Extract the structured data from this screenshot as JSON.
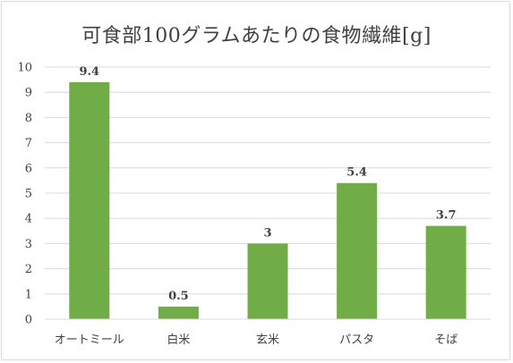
{
  "chart_data": {
    "type": "bar",
    "title": "可食部100グラムあたりの食物繊維[g]",
    "xlabel": "",
    "ylabel": "",
    "categories": [
      "オートミール",
      "白米",
      "玄米",
      "パスタ",
      "そば"
    ],
    "values": [
      9.4,
      0.5,
      3,
      5.4,
      3.7
    ],
    "data_labels": [
      "9.4",
      "0.5",
      "3",
      "5.4",
      "3.7"
    ],
    "ylim": [
      0,
      10
    ],
    "yticks": [
      0,
      1,
      2,
      3,
      4,
      5,
      6,
      7,
      8,
      9,
      10
    ],
    "grid": true,
    "legend": "none",
    "bar_color": "#70ad47",
    "grid_color": "#d9d9d9"
  }
}
